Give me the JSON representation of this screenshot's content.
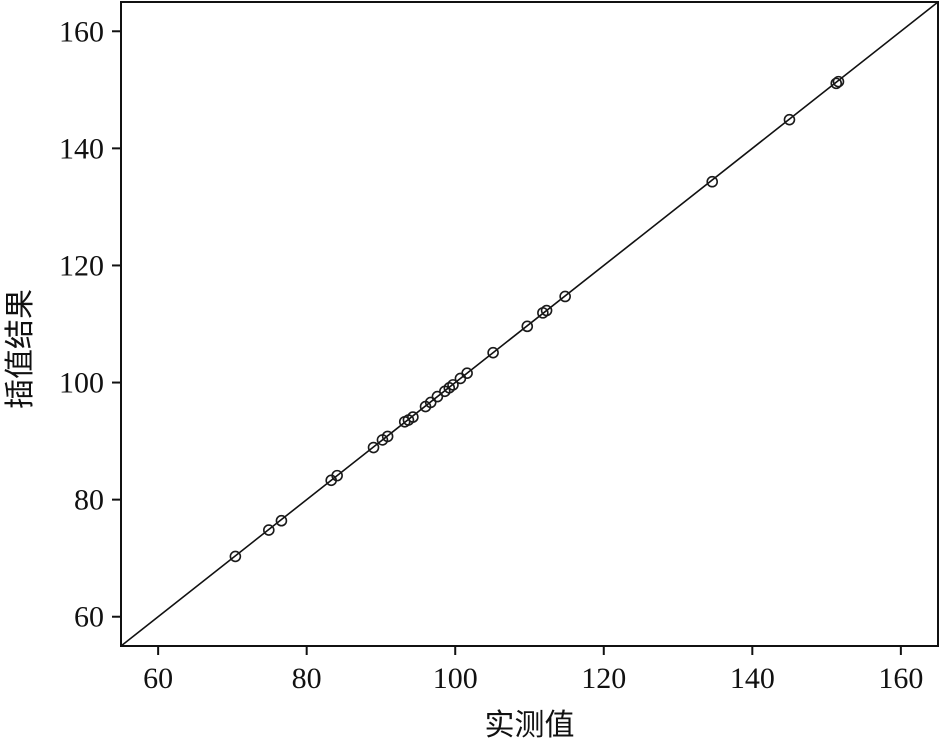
{
  "chart_data": {
    "type": "scatter",
    "title": "",
    "xlabel": "实测值",
    "ylabel": "插值结果",
    "xlim": [
      55,
      165
    ],
    "ylim": [
      55,
      165
    ],
    "xticks": [
      60,
      80,
      100,
      120,
      140,
      160
    ],
    "yticks": [
      60,
      80,
      100,
      120,
      140,
      160
    ],
    "grid": false,
    "reference_line": "y = x",
    "marker": "open-circle",
    "points": [
      {
        "x": 70.4,
        "y": 70.3
      },
      {
        "x": 74.9,
        "y": 74.8
      },
      {
        "x": 76.6,
        "y": 76.4
      },
      {
        "x": 83.3,
        "y": 83.3
      },
      {
        "x": 84.1,
        "y": 84.1
      },
      {
        "x": 89.0,
        "y": 88.9
      },
      {
        "x": 90.2,
        "y": 90.2
      },
      {
        "x": 90.9,
        "y": 90.8
      },
      {
        "x": 93.2,
        "y": 93.3
      },
      {
        "x": 93.7,
        "y": 93.6
      },
      {
        "x": 94.3,
        "y": 94.1
      },
      {
        "x": 96.0,
        "y": 95.9
      },
      {
        "x": 96.7,
        "y": 96.6
      },
      {
        "x": 97.6,
        "y": 97.6
      },
      {
        "x": 98.6,
        "y": 98.5
      },
      {
        "x": 99.2,
        "y": 99.1
      },
      {
        "x": 99.7,
        "y": 99.6
      },
      {
        "x": 100.7,
        "y": 100.7
      },
      {
        "x": 101.6,
        "y": 101.6
      },
      {
        "x": 105.1,
        "y": 105.1
      },
      {
        "x": 109.7,
        "y": 109.6
      },
      {
        "x": 111.8,
        "y": 111.9
      },
      {
        "x": 112.3,
        "y": 112.3
      },
      {
        "x": 114.8,
        "y": 114.7
      },
      {
        "x": 134.6,
        "y": 134.3
      },
      {
        "x": 145.0,
        "y": 144.9
      },
      {
        "x": 151.3,
        "y": 151.1
      },
      {
        "x": 151.6,
        "y": 151.4
      }
    ]
  }
}
